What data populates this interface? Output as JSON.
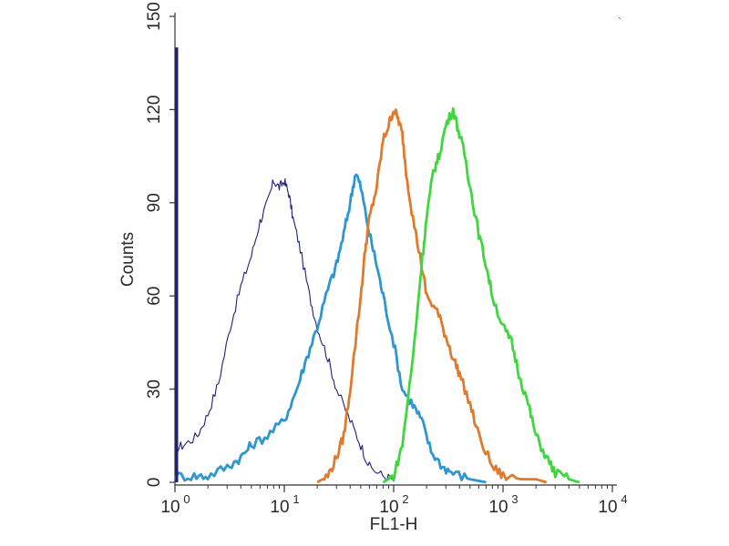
{
  "chart_data": {
    "type": "line",
    "title": "",
    "xlabel": "FL1-H",
    "ylabel": "Counts",
    "x_scale": "log",
    "xlim": [
      1,
      10000
    ],
    "ylim": [
      0,
      150
    ],
    "x_ticks": [
      {
        "value": 1,
        "base": "10",
        "exp": "0"
      },
      {
        "value": 10,
        "base": "10",
        "exp": "1"
      },
      {
        "value": 100,
        "base": "10",
        "exp": "2"
      },
      {
        "value": 1000,
        "base": "10",
        "exp": "3"
      },
      {
        "value": 10000,
        "base": "10",
        "exp": "4"
      }
    ],
    "y_ticks": [
      0,
      30,
      60,
      90,
      120,
      150
    ],
    "grid": false,
    "legend": "none",
    "series": [
      {
        "color": "#1f1f7a",
        "style": "thin",
        "x": [
          1,
          1.2,
          1.6,
          2.0,
          2.5,
          3.2,
          4.0,
          5.0,
          6.0,
          7.0,
          8.0,
          9.0,
          10,
          11,
          12,
          14,
          17,
          20,
          25,
          30,
          40,
          50,
          60,
          80,
          100
        ],
        "y": [
          11,
          12,
          15,
          22,
          32,
          50,
          63,
          73,
          84,
          90,
          97,
          95,
          97,
          93,
          85,
          75,
          60,
          50,
          40,
          30,
          20,
          12,
          5,
          2,
          1
        ]
      },
      {
        "color": "#2f97cf",
        "style": "thick",
        "x": [
          1,
          1.5,
          2,
          3,
          4,
          5,
          7,
          10,
          13,
          16,
          20,
          25,
          30,
          35,
          40,
          45,
          50,
          60,
          70,
          80,
          100,
          120,
          150,
          180,
          220,
          280,
          350,
          500,
          700
        ],
        "y": [
          2,
          2,
          2,
          5,
          8,
          12,
          15,
          20,
          30,
          40,
          50,
          62,
          70,
          80,
          90,
          100,
          95,
          80,
          70,
          60,
          45,
          30,
          25,
          20,
          10,
          5,
          3,
          1,
          0
        ]
      },
      {
        "color": "#e07a2c",
        "style": "thick",
        "x": [
          20,
          25,
          30,
          35,
          40,
          50,
          55,
          60,
          70,
          80,
          90,
          100,
          110,
          120,
          130,
          150,
          180,
          200,
          250,
          300,
          350,
          400,
          500,
          600,
          800,
          1000,
          1500,
          2000,
          2500
        ],
        "y": [
          0,
          2,
          8,
          15,
          30,
          60,
          75,
          85,
          95,
          110,
          115,
          120,
          117,
          112,
          100,
          85,
          70,
          60,
          55,
          47,
          40,
          35,
          25,
          15,
          5,
          2,
          1,
          1,
          0
        ]
      },
      {
        "color": "#3fd63f",
        "style": "thick",
        "x": [
          80,
          100,
          120,
          150,
          180,
          200,
          230,
          260,
          300,
          350,
          400,
          450,
          500,
          600,
          700,
          800,
          1000,
          1200,
          1400,
          1700,
          2000,
          2500,
          3000,
          4000,
          5000
        ],
        "y": [
          0,
          2,
          12,
          40,
          70,
          85,
          100,
          105,
          115,
          120,
          112,
          105,
          95,
          80,
          70,
          60,
          50,
          45,
          35,
          25,
          15,
          8,
          3,
          1,
          0
        ]
      }
    ]
  }
}
